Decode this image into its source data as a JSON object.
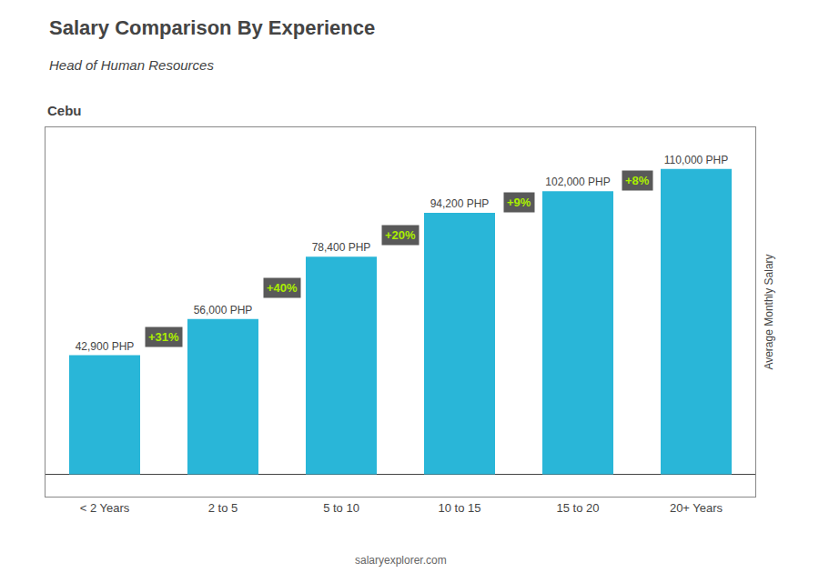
{
  "chart_data": {
    "type": "bar",
    "title": "Salary Comparison By Experience",
    "subtitle": "Head of Human Resources",
    "location": "Cebu",
    "watermark": "salaryexplorer.com",
    "ylabel": "Average Monthly Salary",
    "categories": [
      "< 2 Years",
      "2 to 5",
      "5 to 10",
      "10 to 15",
      "15 to 20",
      "20+ Years"
    ],
    "values": [
      42900,
      56000,
      78400,
      94200,
      102000,
      110000
    ],
    "value_labels": [
      "42,900 PHP",
      "56,000 PHP",
      "78,400 PHP",
      "94,200 PHP",
      "102,000 PHP",
      "110,000 PHP"
    ],
    "data_labels": true,
    "color": "#29b6d8",
    "annotations": [
      {
        "text": "+31%",
        "from": "< 2 Years",
        "to": "2 to 5",
        "color": "#aaee00"
      },
      {
        "text": "+40%",
        "from": "2 to 5",
        "to": "5 to 10",
        "color": "#aaee00"
      },
      {
        "text": "+20%",
        "from": "5 to 10",
        "to": "10 to 15",
        "color": "#aaee00"
      },
      {
        "text": "+9%",
        "from": "10 to 15",
        "to": "15 to 20",
        "color": "#aaee00"
      },
      {
        "text": "+8%",
        "from": "15 to 20",
        "to": "20+ Years",
        "color": "#aaee00"
      }
    ],
    "ylim": [
      -8000,
      125000
    ],
    "yticks": [],
    "tick_labels": "x",
    "grid": false
  }
}
